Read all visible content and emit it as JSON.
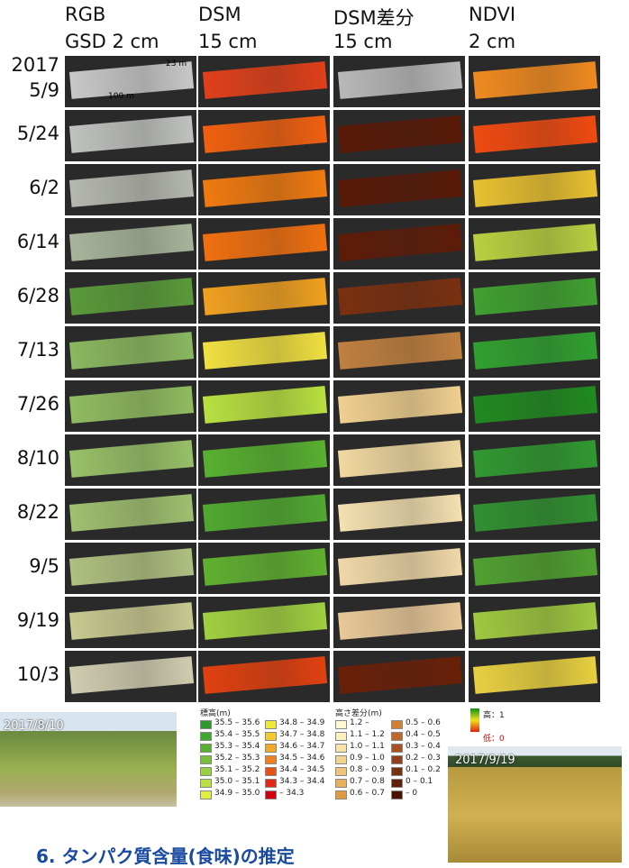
{
  "headers": [
    {
      "name": "RGB",
      "resolution": "GSD 2 cm"
    },
    {
      "name": "DSM",
      "resolution": "15 cm"
    },
    {
      "name": "DSM差分",
      "resolution": "15 cm"
    },
    {
      "name": "NDVI",
      "resolution": "2 cm"
    }
  ],
  "year": "2017",
  "dates": [
    "5/9",
    "5/24",
    "6/2",
    "6/14",
    "6/28",
    "7/13",
    "7/26",
    "8/10",
    "8/22",
    "9/5",
    "9/19",
    "10/3"
  ],
  "scale_labels": {
    "width": "23 m",
    "length": "100 m"
  },
  "legend_elevation": {
    "title": "標高(m)",
    "items": [
      "35.5 – 35.6",
      "35.4 – 35.5",
      "35.3 – 35.4",
      "35.2 – 35.3",
      "35.1 – 35.2",
      "35.0 – 35.1",
      "34.9 – 35.0",
      "34.8 – 34.9",
      "34.7 – 34.8",
      "34.6 – 34.7",
      "34.5 – 34.6",
      "34.4 – 34.5",
      "34.3 – 34.4",
      "– 34.3"
    ]
  },
  "legend_height_diff": {
    "title": "高さ差分(m)",
    "items": [
      "1.2 –",
      "1.1 – 1.2",
      "1.0 – 1.1",
      "0.9 – 1.0",
      "0.8 – 0.9",
      "0.7 – 0.8",
      "0.6 – 0.7",
      "0.5 – 0.6",
      "0.4 – 0.5",
      "0.3 – 0.4",
      "0.2 – 0.3",
      "0.1 – 0.2",
      "0 – 0.1",
      "– 0"
    ]
  },
  "legend_ndvi": {
    "high": "高：1",
    "low": "低：0"
  },
  "photos": [
    {
      "label": "2017/8/10"
    },
    {
      "label": "2017/9/19"
    }
  ],
  "section_heading": "6. タンパク質含量(食味)の推定"
}
